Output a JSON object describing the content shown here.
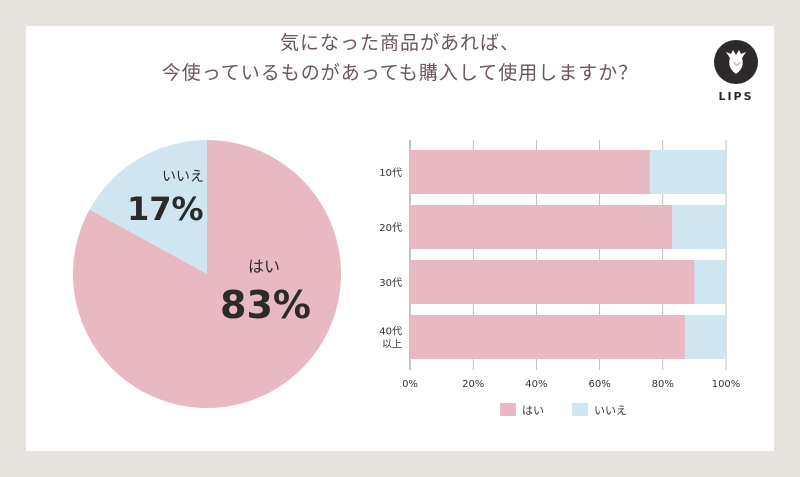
{
  "title_lines": [
    "気になった商品があれば、",
    "今使っているものがあっても購入して使用しますか？"
  ],
  "logo_text": "LIPS",
  "colors": {
    "yes": "#e8b9c3",
    "no": "#cfe5ef",
    "text": "#2d2a2b",
    "title": "#6b5560",
    "grid": "#999999"
  },
  "chart_data": [
    {
      "type": "pie",
      "slices": [
        {
          "label": "はい",
          "value": 83,
          "display": "83%"
        },
        {
          "label": "いいえ",
          "value": 17,
          "display": "17%"
        }
      ]
    },
    {
      "type": "bar",
      "orientation": "horizontal",
      "stacked": true,
      "categories": [
        "10代",
        "20代",
        "30代",
        "40代\n以上"
      ],
      "series": [
        {
          "name": "はい",
          "values": [
            76,
            83,
            90,
            87
          ]
        },
        {
          "name": "いいえ",
          "values": [
            24,
            17,
            10,
            13
          ]
        }
      ],
      "xlim": [
        0,
        100
      ],
      "xticks": [
        "0%",
        "20%",
        "40%",
        "60%",
        "80%",
        "100%"
      ],
      "grid": true,
      "legend": "bottom"
    }
  ]
}
